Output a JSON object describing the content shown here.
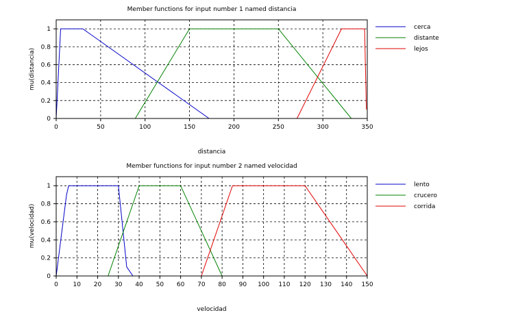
{
  "chart_data": [
    {
      "type": "line",
      "title": "Member functions for input number 1 named distancia",
      "xlabel": "distancia",
      "ylabel": "mu(distancia)",
      "xlim": [
        0,
        350
      ],
      "ylim": [
        0,
        1.1
      ],
      "xticks": [
        0,
        50,
        100,
        150,
        200,
        250,
        300,
        350
      ],
      "yticks": [
        0,
        0.2,
        0.4,
        0.6,
        0.8,
        1
      ],
      "ytick_labels": [
        "0",
        "0.2",
        "0.4",
        "0.6",
        "0.8",
        "1"
      ],
      "grid": true,
      "legend": "right",
      "series": [
        {
          "name": "cerca",
          "color": "#0000c8",
          "x": [
            0,
            5,
            30,
            172,
            350
          ],
          "y": [
            0,
            1,
            1,
            0,
            0
          ]
        },
        {
          "name": "distante",
          "color": "#008000",
          "x": [
            0,
            89,
            150,
            250,
            332,
            350
          ],
          "y": [
            0,
            0,
            1,
            1,
            0,
            0
          ]
        },
        {
          "name": "lejos",
          "color": "#e00000",
          "x": [
            0,
            271,
            321,
            347,
            349
          ],
          "y": [
            0,
            0,
            1,
            1,
            0.1
          ]
        }
      ]
    },
    {
      "type": "line",
      "title": "Member functions for input number 2 named velocidad",
      "xlabel": "velocidad",
      "ylabel": "mu(velocidad)",
      "xlim": [
        0,
        150
      ],
      "ylim": [
        0,
        1.1
      ],
      "xticks": [
        0,
        10,
        20,
        30,
        40,
        50,
        60,
        70,
        80,
        90,
        100,
        110,
        120,
        130,
        140,
        150
      ],
      "yticks": [
        0,
        0.2,
        0.4,
        0.6,
        0.8,
        1
      ],
      "ytick_labels": [
        "0",
        "0.2",
        "0.4",
        "0.6",
        "0.8",
        "1"
      ],
      "grid": true,
      "legend": "right",
      "series": [
        {
          "name": "lento",
          "color": "#0000c8",
          "x": [
            0,
            5,
            6,
            30,
            34,
            37,
            150
          ],
          "y": [
            0,
            0.9,
            1,
            1,
            0.1,
            0,
            0
          ]
        },
        {
          "name": "crucero",
          "color": "#008000",
          "x": [
            0,
            25,
            40,
            60,
            80,
            150
          ],
          "y": [
            0,
            0,
            1,
            1,
            0,
            0
          ]
        },
        {
          "name": "corrida",
          "color": "#e00000",
          "x": [
            0,
            70,
            85,
            120,
            150
          ],
          "y": [
            0,
            0,
            1,
            1,
            0
          ]
        }
      ]
    }
  ]
}
